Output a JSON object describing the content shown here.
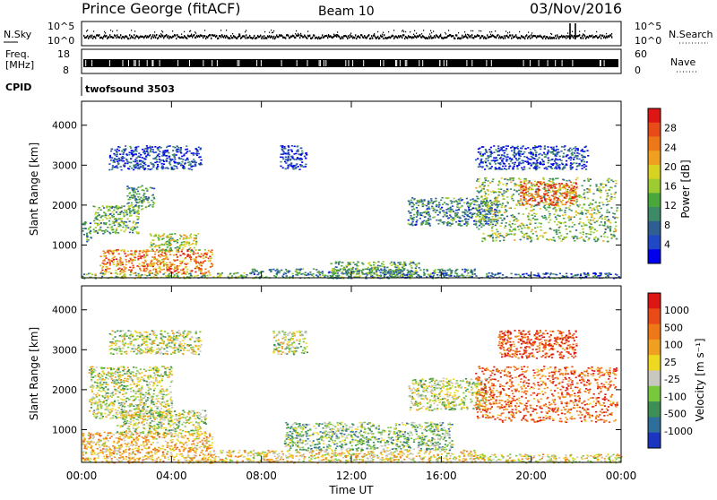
{
  "header": {
    "station": "Prince George (fitACF)",
    "beam": "Beam 10",
    "date": "03/Nov/2016"
  },
  "strips": {
    "nsky": {
      "label": "N.Sky",
      "ticks": [
        "10^5",
        "10^0"
      ],
      "right_label": "N.Search",
      "right_ticks": [
        "10^5",
        "10^0"
      ]
    },
    "freq": {
      "label_line1": "Freq.",
      "label_line2": "[MHz]",
      "ticks": [
        "18",
        "8"
      ],
      "right_label": "Nave",
      "right_ticks": [
        "60",
        "0"
      ]
    },
    "cpid": {
      "label": "CPID",
      "value": "twofsound 3503"
    }
  },
  "chart_data": [
    {
      "type": "heatmap",
      "title": "",
      "xlabel": "Time UT",
      "ylabel": "Slant Range [km]",
      "x_ticks": [
        "00:00",
        "04:00",
        "08:00",
        "12:00",
        "16:00",
        "20:00",
        "00:00"
      ],
      "y_ticks": [
        "1000",
        "2000",
        "3000",
        "4000"
      ],
      "xlim_hours": [
        0,
        24
      ],
      "ylim_km": [
        180,
        4600
      ],
      "colorbar": {
        "label": "Power [dB]",
        "ticks": [
          "4",
          "8",
          "12",
          "16",
          "20",
          "24",
          "28"
        ],
        "colors": [
          "#0000ee",
          "#1f49c4",
          "#2f5f92",
          "#3c8a68",
          "#49a83a",
          "#9ccc32",
          "#d8d222",
          "#f0a020",
          "#ee7818",
          "#e84a18",
          "#dd1515"
        ]
      },
      "regions": [
        {
          "t": [
            0.0,
            7.5
          ],
          "r": [
            180,
            320
          ],
          "level": 0.45
        },
        {
          "t": [
            7.5,
            17.5
          ],
          "r": [
            180,
            420
          ],
          "level": 0.3
        },
        {
          "t": [
            17.5,
            24.0
          ],
          "r": [
            180,
            320
          ],
          "level": 0.2
        },
        {
          "t": [
            0.8,
            5.8
          ],
          "r": [
            300,
            900
          ],
          "level": 0.75
        },
        {
          "t": [
            3.0,
            5.2
          ],
          "r": [
            850,
            1300
          ],
          "level": 0.5
        },
        {
          "t": [
            0.5,
            2.5
          ],
          "r": [
            1300,
            2000
          ],
          "level": 0.4
        },
        {
          "t": [
            2.0,
            3.2
          ],
          "r": [
            1900,
            2500
          ],
          "level": 0.35
        },
        {
          "t": [
            1.2,
            5.3
          ],
          "r": [
            2900,
            3500
          ],
          "level": 0.15
        },
        {
          "t": [
            8.8,
            10.0
          ],
          "r": [
            2900,
            3500
          ],
          "level": 0.12
        },
        {
          "t": [
            11.0,
            15.0
          ],
          "r": [
            180,
            600
          ],
          "level": 0.4
        },
        {
          "t": [
            14.5,
            18.5
          ],
          "r": [
            1500,
            2200
          ],
          "level": 0.3
        },
        {
          "t": [
            17.5,
            23.8
          ],
          "r": [
            1100,
            2700
          ],
          "level": 0.45
        },
        {
          "t": [
            19.5,
            22.0
          ],
          "r": [
            2000,
            2600
          ],
          "level": 0.8
        },
        {
          "t": [
            17.5,
            22.5
          ],
          "r": [
            2900,
            3500
          ],
          "level": 0.15
        },
        {
          "t": [
            0.0,
            0.4
          ],
          "r": [
            1100,
            1600
          ],
          "level": 0.3
        }
      ]
    },
    {
      "type": "heatmap",
      "title": "",
      "xlabel": "Time UT",
      "ylabel": "Slant Range [km]",
      "x_ticks": [
        "00:00",
        "04:00",
        "08:00",
        "12:00",
        "16:00",
        "20:00",
        "00:00"
      ],
      "y_ticks": [
        "1000",
        "2000",
        "3000",
        "4000"
      ],
      "xlim_hours": [
        0,
        24
      ],
      "ylim_km": [
        180,
        4600
      ],
      "colorbar": {
        "label": "Velocity [m s⁻¹]",
        "ticks": [
          "1000",
          "500",
          "100",
          "25",
          "-25",
          "-100",
          "-500",
          "-1000"
        ],
        "colors": [
          "#1c35c0",
          "#2e6e9a",
          "#3e8f55",
          "#78c83e",
          "#c8c8c0",
          "#eed820",
          "#f0a020",
          "#ee7818",
          "#e84a18",
          "#dd1515"
        ]
      },
      "regions": [
        {
          "t": [
            0.0,
            5.8
          ],
          "r": [
            180,
            950
          ],
          "level": 0.6
        },
        {
          "t": [
            5.8,
            17.5
          ],
          "r": [
            180,
            500
          ],
          "level": 0.55
        },
        {
          "t": [
            17.5,
            24.0
          ],
          "r": [
            180,
            400
          ],
          "level": 0.5
        },
        {
          "t": [
            0.3,
            4.0
          ],
          "r": [
            1300,
            2600
          ],
          "level": 0.45
        },
        {
          "t": [
            1.5,
            5.5
          ],
          "r": [
            900,
            1500
          ],
          "level": 0.45
        },
        {
          "t": [
            14.5,
            18.0
          ],
          "r": [
            1500,
            2300
          ],
          "level": 0.45
        },
        {
          "t": [
            17.5,
            23.8
          ],
          "r": [
            1200,
            2600
          ],
          "level": 0.8
        },
        {
          "t": [
            18.5,
            22.0
          ],
          "r": [
            2800,
            3500
          ],
          "level": 0.85
        },
        {
          "t": [
            1.2,
            5.3
          ],
          "r": [
            2900,
            3500
          ],
          "level": 0.45
        },
        {
          "t": [
            8.5,
            10.0
          ],
          "r": [
            2900,
            3500
          ],
          "level": 0.45
        },
        {
          "t": [
            9.0,
            16.5
          ],
          "r": [
            500,
            1200
          ],
          "level": 0.35
        }
      ]
    }
  ]
}
